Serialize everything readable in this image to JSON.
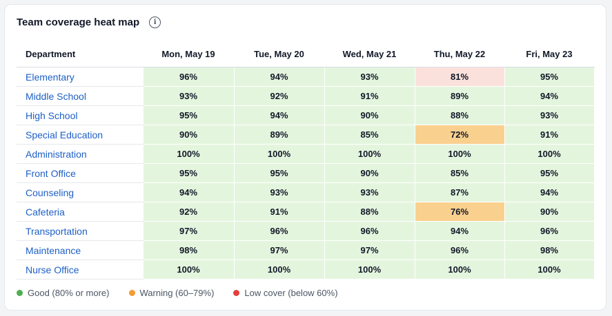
{
  "card": {
    "title": "Team coverage heat map",
    "info_glyph": "i"
  },
  "table": {
    "department_header": "Department",
    "days": [
      "Mon, May 19",
      "Tue, May 20",
      "Wed, May 21",
      "Thu, May 22",
      "Fri, May 23"
    ],
    "rows": [
      {
        "department": "Elementary",
        "values": [
          "96%",
          "94%",
          "93%",
          "81%",
          "95%"
        ],
        "status": [
          "good",
          "good",
          "good",
          "soft",
          "good"
        ]
      },
      {
        "department": "Middle School",
        "values": [
          "93%",
          "92%",
          "91%",
          "89%",
          "94%"
        ],
        "status": [
          "good",
          "good",
          "good",
          "good",
          "good"
        ]
      },
      {
        "department": "High School",
        "values": [
          "95%",
          "94%",
          "90%",
          "88%",
          "93%"
        ],
        "status": [
          "good",
          "good",
          "good",
          "good",
          "good"
        ]
      },
      {
        "department": "Special Education",
        "values": [
          "90%",
          "89%",
          "85%",
          "72%",
          "91%"
        ],
        "status": [
          "good",
          "good",
          "good",
          "warn",
          "good"
        ]
      },
      {
        "department": "Administration",
        "values": [
          "100%",
          "100%",
          "100%",
          "100%",
          "100%"
        ],
        "status": [
          "good",
          "good",
          "good",
          "good",
          "good"
        ]
      },
      {
        "department": "Front Office",
        "values": [
          "95%",
          "95%",
          "90%",
          "85%",
          "95%"
        ],
        "status": [
          "good",
          "good",
          "good",
          "good",
          "good"
        ]
      },
      {
        "department": "Counseling",
        "values": [
          "94%",
          "93%",
          "93%",
          "87%",
          "94%"
        ],
        "status": [
          "good",
          "good",
          "good",
          "good",
          "good"
        ]
      },
      {
        "department": "Cafeteria",
        "values": [
          "92%",
          "91%",
          "88%",
          "76%",
          "90%"
        ],
        "status": [
          "good",
          "good",
          "good",
          "warn",
          "good"
        ]
      },
      {
        "department": "Transportation",
        "values": [
          "97%",
          "96%",
          "96%",
          "94%",
          "96%"
        ],
        "status": [
          "good",
          "good",
          "good",
          "good",
          "good"
        ]
      },
      {
        "department": "Maintenance",
        "values": [
          "98%",
          "97%",
          "97%",
          "96%",
          "98%"
        ],
        "status": [
          "good",
          "good",
          "good",
          "good",
          "good"
        ]
      },
      {
        "department": "Nurse Office",
        "values": [
          "100%",
          "100%",
          "100%",
          "100%",
          "100%"
        ],
        "status": [
          "good",
          "good",
          "good",
          "good",
          "good"
        ]
      }
    ]
  },
  "legend": [
    {
      "label": "Good (80% or more)",
      "color": "#4caf50",
      "icon": "green-dot-icon"
    },
    {
      "label": "Warning (60–79%)",
      "color": "#f39c34",
      "icon": "orange-dot-icon"
    },
    {
      "label": "Low cover (below 60%)",
      "color": "#e53e3e",
      "icon": "red-dot-icon"
    }
  ]
}
